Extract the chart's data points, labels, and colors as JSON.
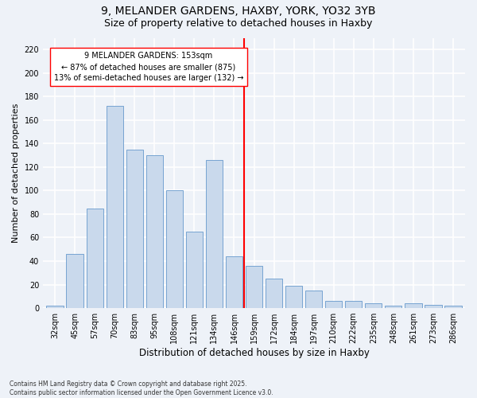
{
  "title1": "9, MELANDER GARDENS, HAXBY, YORK, YO32 3YB",
  "title2": "Size of property relative to detached houses in Haxby",
  "xlabel": "Distribution of detached houses by size in Haxby",
  "ylabel": "Number of detached properties",
  "footer": "Contains HM Land Registry data © Crown copyright and database right 2025.\nContains public sector information licensed under the Open Government Licence v3.0.",
  "categories": [
    "32sqm",
    "45sqm",
    "57sqm",
    "70sqm",
    "83sqm",
    "95sqm",
    "108sqm",
    "121sqm",
    "134sqm",
    "146sqm",
    "159sqm",
    "172sqm",
    "184sqm",
    "197sqm",
    "210sqm",
    "222sqm",
    "235sqm",
    "248sqm",
    "261sqm",
    "273sqm",
    "286sqm"
  ],
  "values": [
    2,
    46,
    85,
    172,
    135,
    130,
    100,
    65,
    126,
    44,
    36,
    25,
    19,
    15,
    6,
    6,
    4,
    2,
    4,
    3,
    2
  ],
  "bar_color": "#c9d9ec",
  "bar_edge_color": "#6699cc",
  "vline_x_index": 9.5,
  "vline_color": "red",
  "annotation_title": "9 MELANDER GARDENS: 153sqm",
  "annotation_line1": "← 87% of detached houses are smaller (875)",
  "annotation_line2": "13% of semi-detached houses are larger (132) →",
  "annotation_box_color": "white",
  "annotation_box_edge_color": "red",
  "ylim": [
    0,
    230
  ],
  "yticks": [
    0,
    20,
    40,
    60,
    80,
    100,
    120,
    140,
    160,
    180,
    200,
    220
  ],
  "bg_color": "#eef2f8",
  "plot_bg_color": "#eef2f8",
  "grid_color": "white",
  "title1_fontsize": 10,
  "title2_fontsize": 9,
  "xlabel_fontsize": 8.5,
  "ylabel_fontsize": 8,
  "tick_fontsize": 7,
  "footer_fontsize": 5.5
}
